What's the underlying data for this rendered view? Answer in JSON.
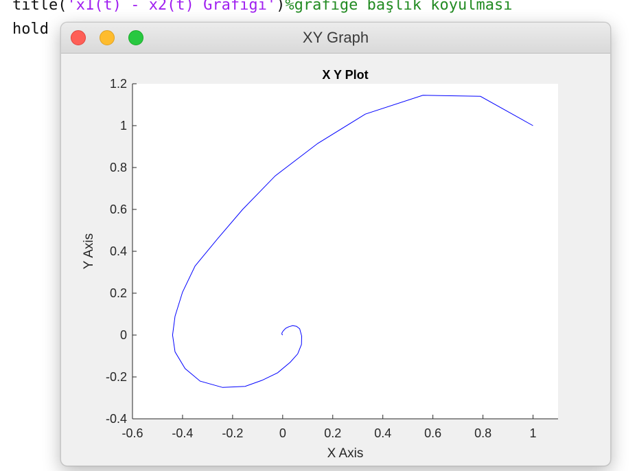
{
  "editor": {
    "line1": {
      "prefix": "title(",
      "string": "'x1(t) - x2(t) Grafiği'",
      "suffix": ")",
      "comment": "%grafiğe başlık koyulması"
    },
    "line2": {
      "text": "hold "
    }
  },
  "window": {
    "title": "XY Graph",
    "colors": {
      "close": "#fe5f57",
      "minimize": "#febc2e",
      "zoom": "#28c840"
    }
  },
  "chart_data": {
    "type": "line",
    "title": "X Y Plot",
    "xlabel": "X Axis",
    "ylabel": "Y Axis",
    "xlim": [
      -0.6,
      1.1
    ],
    "ylim": [
      -0.4,
      1.2
    ],
    "x_ticks": [
      "-0.6",
      "-0.4",
      "-0.2",
      "0",
      "0.2",
      "0.4",
      "0.6",
      "0.8",
      "1"
    ],
    "y_ticks": [
      "-0.4",
      "-0.2",
      "0",
      "0.2",
      "0.4",
      "0.6",
      "0.8",
      "1",
      "1.2"
    ],
    "grid": false,
    "line_color": "#0000ff",
    "series": [
      {
        "x": [
          1.0,
          0.79,
          0.56,
          0.33,
          0.14,
          -0.03,
          -0.16,
          -0.26,
          -0.35,
          -0.4,
          -0.43,
          -0.44,
          -0.43,
          -0.39,
          -0.33,
          -0.24,
          -0.15,
          -0.08,
          -0.02,
          0.03,
          0.06,
          0.075,
          0.076,
          0.068,
          0.055,
          0.04,
          0.025,
          0.012,
          0.002,
          -0.003,
          -0.003,
          0.0
        ],
        "y": [
          1.0,
          1.14,
          1.145,
          1.055,
          0.915,
          0.76,
          0.6,
          0.46,
          0.33,
          0.205,
          0.09,
          0.0,
          -0.08,
          -0.16,
          -0.22,
          -0.25,
          -0.245,
          -0.215,
          -0.18,
          -0.13,
          -0.09,
          -0.045,
          -0.005,
          0.03,
          0.042,
          0.045,
          0.04,
          0.032,
          0.02,
          0.01,
          0.004,
          0.0
        ]
      }
    ]
  }
}
